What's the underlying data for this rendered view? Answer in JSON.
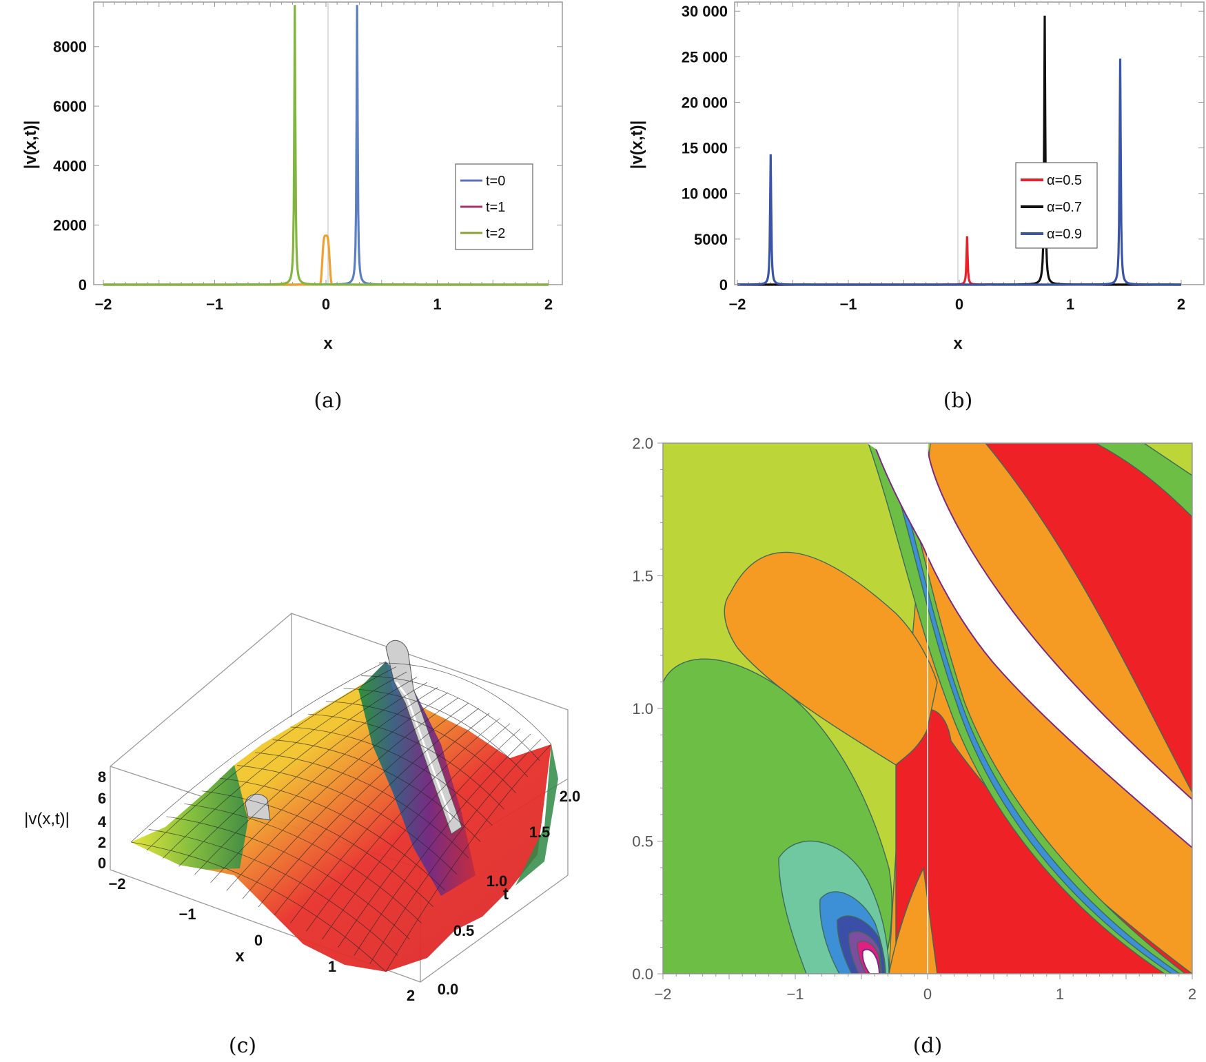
{
  "captions": [
    "(a)",
    "(b)",
    "(c)",
    "(d)"
  ],
  "chart_data": [
    {
      "id": "a",
      "type": "line",
      "xlabel": "x",
      "ylabel": "|v(x,t)|",
      "xlim": [
        -2,
        2
      ],
      "ylim": [
        0,
        9500
      ],
      "xticks": [
        -2,
        -1,
        0,
        1,
        2
      ],
      "xtick_labels": [
        "−2",
        "−1",
        "0",
        "1",
        "2"
      ],
      "yticks": [
        0,
        2000,
        4000,
        6000,
        8000
      ],
      "ytick_labels": [
        "0",
        "2000",
        "4000",
        "6000",
        "8000"
      ],
      "legend": {
        "position": "right-middle",
        "entries": [
          "t=0",
          "t=1",
          "t=2"
        ]
      },
      "series": [
        {
          "name": "t=0",
          "color": "#5b7fc1",
          "peak_x": 0.28,
          "peak_y": 9400,
          "width": 0.012
        },
        {
          "name": "t=1",
          "color": "#f0a030",
          "peak_x": 0.0,
          "peak_y": 1650,
          "width": 0.03,
          "flat_top": true
        },
        {
          "name": "t=2",
          "color": "#82b540",
          "peak_x": -0.28,
          "peak_y": 9400,
          "width": 0.012
        }
      ],
      "legend_colors": [
        "#5b6fc0",
        "#a8306a",
        "#8ea03a"
      ]
    },
    {
      "id": "b",
      "type": "line",
      "xlabel": "x",
      "ylabel": "|v(x,t)|",
      "xlim": [
        -2,
        2
      ],
      "ylim": [
        0,
        31000
      ],
      "xticks": [
        -2,
        -1,
        0,
        1,
        2
      ],
      "xtick_labels": [
        "−2",
        "−1",
        "0",
        "1",
        "2"
      ],
      "yticks": [
        0,
        5000,
        10000,
        15000,
        20000,
        25000,
        30000
      ],
      "ytick_labels": [
        "0",
        "5000",
        "10 000",
        "15 000",
        "20 000",
        "25 000",
        "30 000"
      ],
      "legend": {
        "position": "center",
        "entries": [
          "α=0.5",
          "α=0.7",
          "α=0.9"
        ]
      },
      "series": [
        {
          "name": "α=0.5",
          "color": "#e8202a",
          "peaks": [
            [
              0.07,
              5300
            ]
          ],
          "width": 0.012
        },
        {
          "name": "α=0.7",
          "color": "#111111",
          "peaks": [
            [
              0.77,
              29500
            ]
          ],
          "width": 0.012
        },
        {
          "name": "α=0.9",
          "color": "#3a55a5",
          "peaks": [
            [
              -1.7,
              14300
            ],
            [
              1.45,
              24800
            ]
          ],
          "width": 0.012
        }
      ]
    },
    {
      "id": "c",
      "type": "surface3d",
      "xlabel": "x",
      "ylabel": "t",
      "zlabel": "|v(x,t)|",
      "xticks": [
        "−2",
        "−1",
        "0",
        "1",
        "2"
      ],
      "yticks": [
        "0.0",
        "0.5",
        "1.0",
        "1.5",
        "2.0"
      ],
      "zticks": [
        "0",
        "2",
        "4",
        "6",
        "8"
      ]
    },
    {
      "id": "d",
      "type": "contour",
      "xlim": [
        -2,
        2
      ],
      "ylim": [
        0,
        2
      ],
      "xticks": [
        -2,
        -1,
        0,
        1,
        2
      ],
      "xtick_labels": [
        "−2",
        "−1",
        "0",
        "1",
        "2"
      ],
      "yticks": [
        0.0,
        0.5,
        1.0,
        1.5,
        2.0
      ],
      "ytick_labels": [
        "0.0",
        "0.5",
        "1.0",
        "1.5",
        "2.0"
      ],
      "palette": [
        "#bcd63a",
        "#6cbe45",
        "#6fc8a0",
        "#3d8fd6",
        "#3c4fa8",
        "#7d4ea0",
        "#e0207f",
        "#f59a23",
        "#ee2127"
      ]
    }
  ]
}
